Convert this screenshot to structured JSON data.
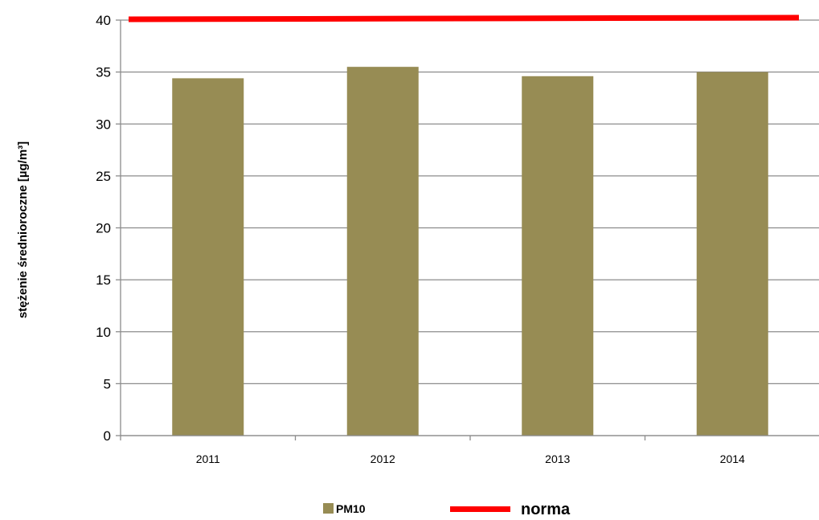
{
  "chart_data": {
    "type": "bar",
    "categories": [
      "2011",
      "2012",
      "2013",
      "2014"
    ],
    "series": [
      {
        "name": "PM10",
        "kind": "bar",
        "values": [
          34.4,
          35.5,
          34.6,
          35.0
        ],
        "color": "#978c54"
      },
      {
        "name": "norma",
        "kind": "line",
        "values": [
          40,
          40,
          40,
          40
        ],
        "color": "#ff0000"
      }
    ],
    "title": "",
    "xlabel": "",
    "ylabel": "stężenie średnioroczne [µg/m³]",
    "ylim": [
      0,
      40
    ],
    "yticks": [
      0,
      5,
      10,
      15,
      20,
      25,
      30,
      35,
      40
    ],
    "grid": true,
    "legend": "bottom"
  },
  "colors": {
    "grid": "#8c8c8c",
    "axis": "#8c8c8c",
    "background": "#ffffff"
  }
}
